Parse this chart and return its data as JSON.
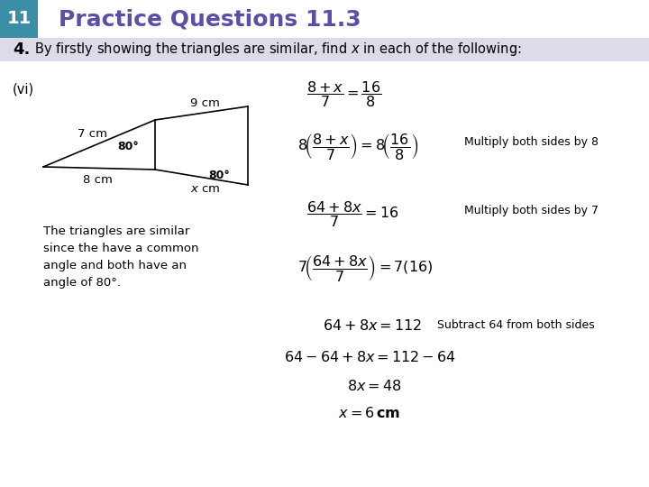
{
  "title_box_color": "#3b8ea5",
  "title_number": "11",
  "title_number_color": "#ffffff",
  "title_text": "Practice Questions 11.3",
  "title_text_color": "#5b4fa8",
  "title_bg_color": "#ffffff",
  "header_bg_color": "#dcdce8",
  "question_number": "4.",
  "bg_color": "#ffffff",
  "triangle_note": "The triangles are similar\nsince the have a common\nangle and both have an\nangle of 80°.",
  "fig_width": 7.2,
  "fig_height": 5.4
}
